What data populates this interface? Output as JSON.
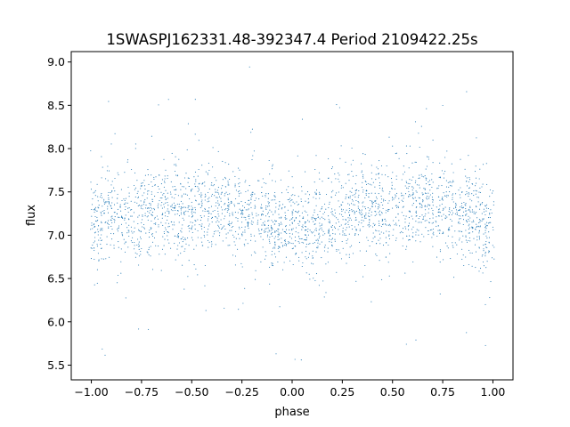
{
  "chart_data": {
    "type": "scatter",
    "title": "1SWASPJ162331.48-392347.4 Period 2109422.25s",
    "xlabel": "phase",
    "ylabel": "flux",
    "xlim": [
      -1.1,
      1.1
    ],
    "ylim": [
      5.33,
      9.12
    ],
    "xticks": [
      -1.0,
      -0.75,
      -0.5,
      -0.25,
      0.0,
      0.25,
      0.5,
      0.75,
      1.0
    ],
    "xtick_labels": [
      "−1.00",
      "−0.75",
      "−0.50",
      "−0.25",
      "0.00",
      "0.25",
      "0.50",
      "0.75",
      "1.00"
    ],
    "yticks": [
      5.5,
      6.0,
      6.5,
      7.0,
      7.5,
      8.0,
      8.5,
      9.0
    ],
    "ytick_labels": [
      "5.5",
      "6.0",
      "6.5",
      "7.0",
      "7.5",
      "8.0",
      "8.5",
      "9.0"
    ],
    "grid": false,
    "marker_color": "#1f77b4",
    "series": [
      {
        "points_note": "phase-folded light curve mirrored around 0",
        "x": [
          -0.98,
          -0.93,
          -0.85,
          -0.72,
          -0.66,
          -0.62,
          -0.55,
          -0.48,
          -0.4,
          -0.33,
          -0.27,
          -0.22,
          -0.15,
          -0.08,
          -0.03,
          0.02,
          0.07,
          0.16,
          0.25,
          0.3,
          0.35,
          0.38,
          0.45,
          0.52,
          0.6,
          0.67,
          0.73,
          0.78,
          0.85,
          0.92,
          0.97
        ],
        "y": [
          7.05,
          7.15,
          7.2,
          7.25,
          7.3,
          7.35,
          7.3,
          7.25,
          7.3,
          7.35,
          7.3,
          7.25,
          7.2,
          7.1,
          7.15,
          7.1,
          7.2,
          7.2,
          7.25,
          7.3,
          7.35,
          7.3,
          7.25,
          7.3,
          7.35,
          7.3,
          7.35,
          7.25,
          7.2,
          7.15,
          7.1
        ]
      }
    ],
    "phase_series_values": {
      "centers": [
        -1.0,
        -0.98,
        -0.95,
        -0.92,
        -0.9,
        -0.87,
        -0.84,
        -0.81,
        -0.78,
        -0.75,
        -0.72,
        -0.69,
        -0.66,
        -0.63,
        -0.6,
        -0.57,
        -0.54,
        -0.51,
        -0.48,
        -0.45,
        -0.42,
        -0.39,
        -0.36,
        -0.33,
        -0.3,
        -0.27,
        -0.24,
        -0.21,
        -0.18,
        -0.15,
        -0.12,
        -0.09,
        -0.06,
        -0.03,
        0.0,
        0.03,
        0.06,
        0.09,
        0.12,
        0.15,
        0.18,
        0.21,
        0.24,
        0.27,
        0.3,
        0.33,
        0.36,
        0.39,
        0.42,
        0.45,
        0.48,
        0.51,
        0.54,
        0.57,
        0.6,
        0.63,
        0.66,
        0.69,
        0.72,
        0.75,
        0.78,
        0.81,
        0.84,
        0.87,
        0.9,
        0.93,
        0.96,
        1.0
      ],
      "mean_flux": [
        7.1,
        7.05,
        7.15,
        7.2,
        7.2,
        7.15,
        7.2,
        7.2,
        7.2,
        7.25,
        7.25,
        7.3,
        7.3,
        7.3,
        7.3,
        7.3,
        7.25,
        7.25,
        7.3,
        7.3,
        7.3,
        7.3,
        7.35,
        7.35,
        7.3,
        7.3,
        7.25,
        7.25,
        7.2,
        7.2,
        7.15,
        7.1,
        7.1,
        7.15,
        7.1,
        7.1,
        7.05,
        7.1,
        7.15,
        7.2,
        7.2,
        7.2,
        7.25,
        7.3,
        7.3,
        7.3,
        7.35,
        7.3,
        7.25,
        7.25,
        7.25,
        7.3,
        7.3,
        7.3,
        7.35,
        7.35,
        7.35,
        7.3,
        7.35,
        7.3,
        7.3,
        7.25,
        7.25,
        7.2,
        7.15,
        7.15,
        7.1,
        7.1
      ]
    }
  }
}
